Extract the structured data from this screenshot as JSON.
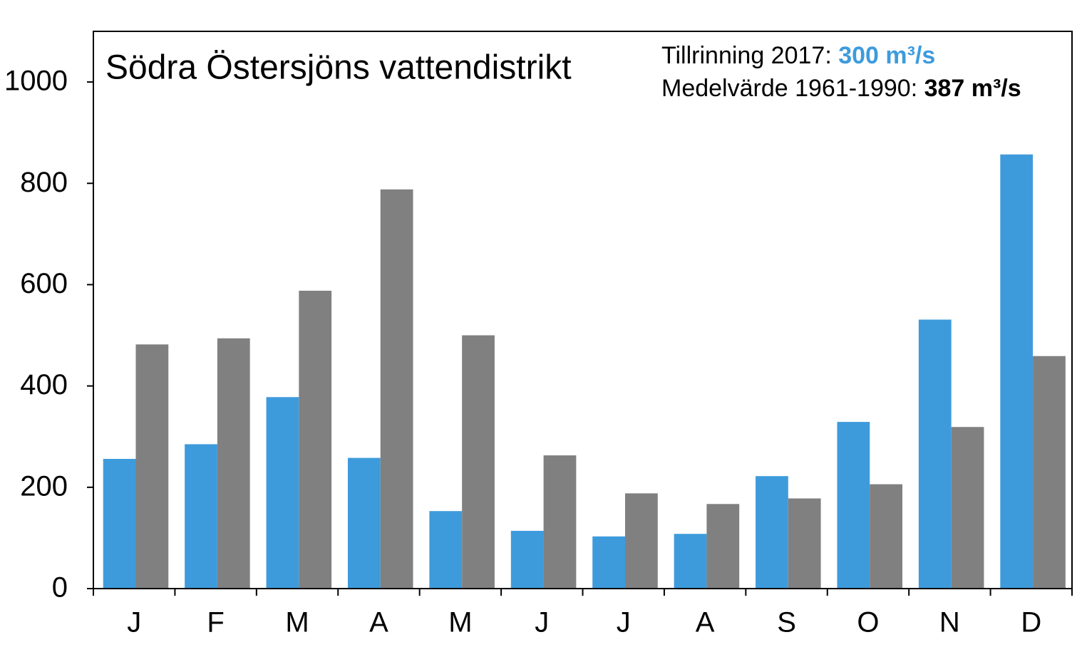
{
  "chart_data": {
    "type": "bar",
    "title": "Södra Östersjöns vattendistrikt",
    "annotations": [
      {
        "label": "Tillrinning 2017:",
        "value": "300 m³/s",
        "color": "#3d9bdc"
      },
      {
        "label": "Medelvärde 1961-1990:",
        "value": "387 m³/s",
        "color": "#000000"
      }
    ],
    "categories": [
      "J",
      "F",
      "M",
      "A",
      "M",
      "J",
      "J",
      "A",
      "S",
      "O",
      "N",
      "D"
    ],
    "series": [
      {
        "color": "#3d9bdc",
        "values": [
          256,
          285,
          378,
          258,
          153,
          114,
          103,
          108,
          222,
          329,
          531,
          857
        ]
      },
      {
        "color": "#808080",
        "values": [
          482,
          494,
          588,
          788,
          500,
          263,
          188,
          167,
          178,
          206,
          319,
          459
        ]
      }
    ],
    "ylim": [
      0,
      1100
    ],
    "yticks": [
      0,
      200,
      400,
      600,
      800,
      1000
    ]
  }
}
